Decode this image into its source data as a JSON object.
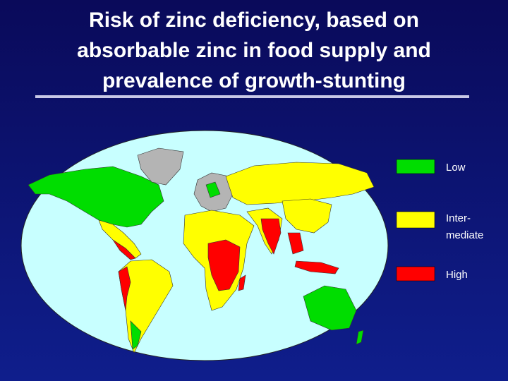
{
  "title": {
    "lines": [
      "Risk of zinc deficiency, based on",
      "absorbable zinc in food supply and",
      "prevalence of growth-stunting"
    ]
  },
  "legend": [
    {
      "lines": [
        "Low"
      ],
      "color": "#00dd00"
    },
    {
      "lines": [
        "Inter-",
        "mediate"
      ],
      "color": "#ffff00"
    },
    {
      "lines": [
        "High"
      ],
      "color": "#ff0000"
    }
  ]
}
